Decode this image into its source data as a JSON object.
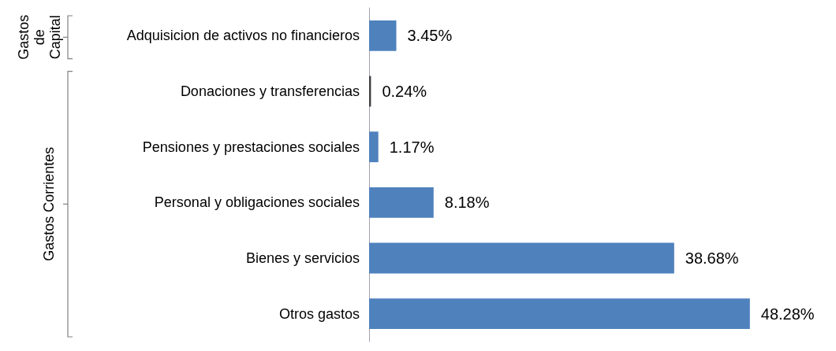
{
  "chart_data": {
    "type": "bar",
    "orientation": "horizontal",
    "categories": [
      "Adquisicion de activos no financieros",
      "Donaciones y transferencias",
      "Pensiones y prestaciones sociales",
      "Personal y obligaciones sociales",
      "Bienes y servicios",
      "Otros gastos"
    ],
    "values": [
      3.45,
      0.24,
      1.17,
      8.18,
      38.68,
      48.28
    ],
    "colors": [
      "#4f81bd",
      "#404040",
      "#4f81bd",
      "#4f81bd",
      "#4f81bd",
      "#4f81bd"
    ],
    "value_labels": [
      "3.45%",
      "0.24%",
      "1.17%",
      "8.18%",
      "38.68%",
      "48.28%"
    ],
    "annotations": [
      "Gastos de Capital",
      "Gastos Corrientes"
    ]
  }
}
